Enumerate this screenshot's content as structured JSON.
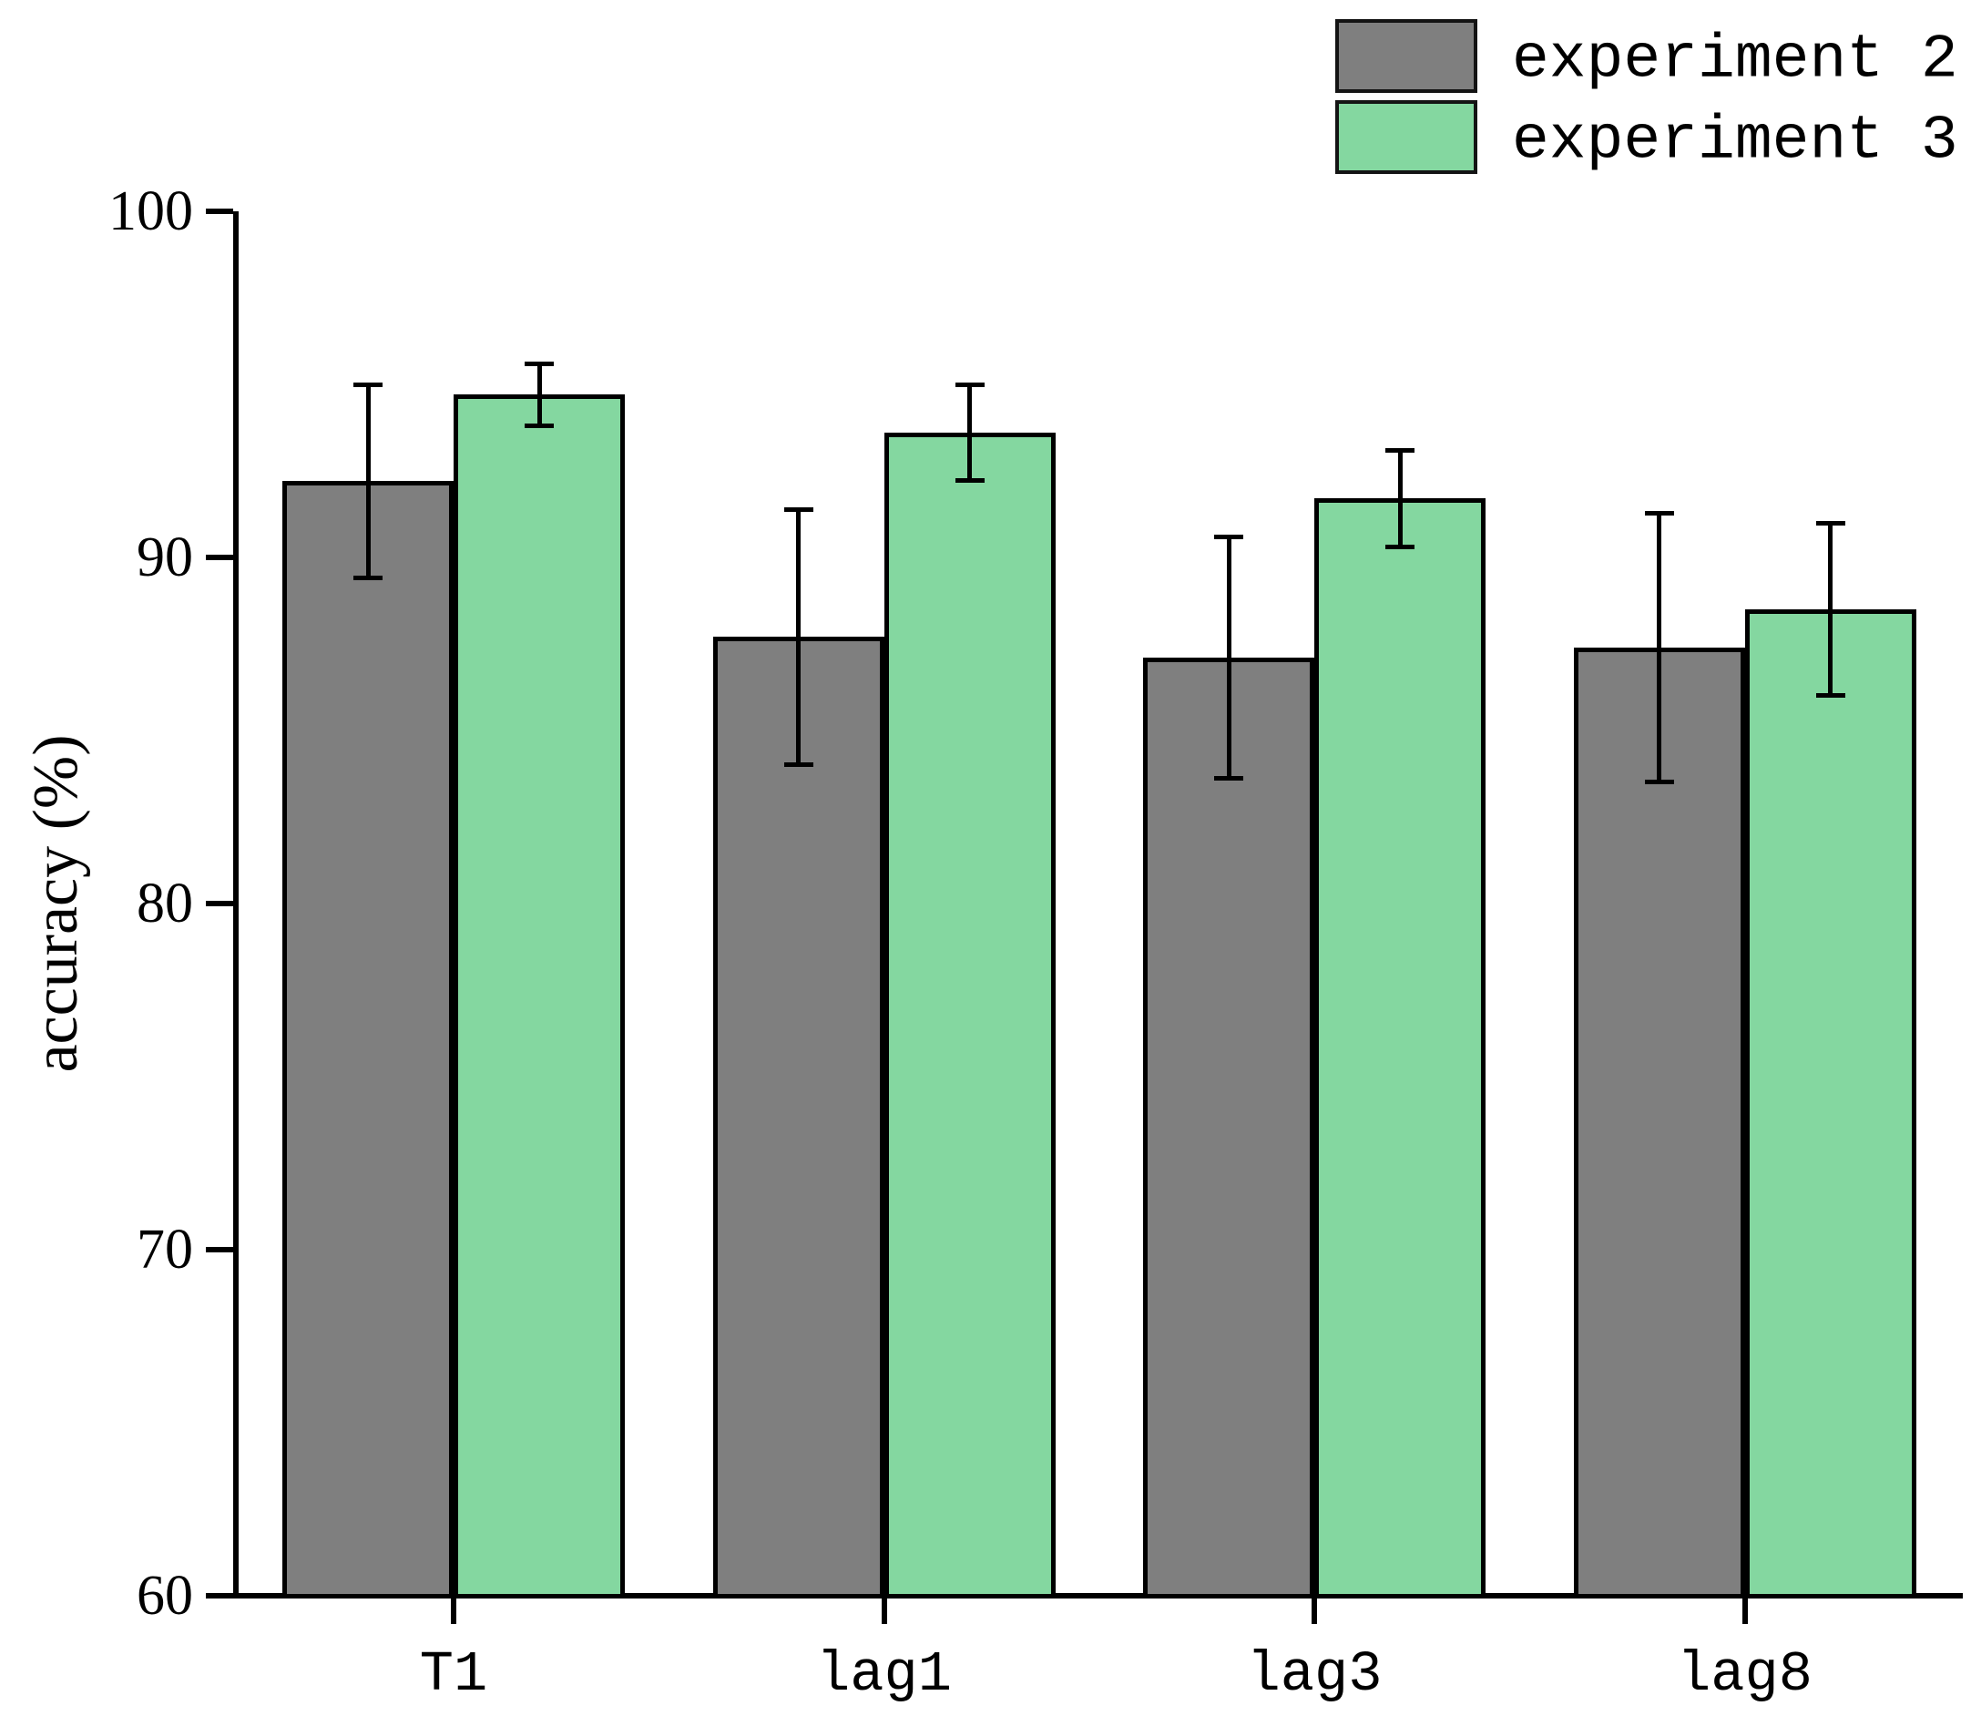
{
  "legend": {
    "items": [
      {
        "label": "experiment 2",
        "color": "#7f7f7f"
      },
      {
        "label": "experiment 3",
        "color": "#84d7a0"
      }
    ]
  },
  "chart_data": {
    "type": "bar",
    "categories": [
      "T1",
      "lag1",
      "lag3",
      "lag8"
    ],
    "series": [
      {
        "name": "experiment 2",
        "color": "#7f7f7f",
        "values": [
          92.2,
          87.7,
          87.1,
          87.4
        ],
        "errors": [
          2.8,
          3.7,
          3.5,
          3.9
        ]
      },
      {
        "name": "experiment 3",
        "color": "#84d7a0",
        "values": [
          94.7,
          93.6,
          91.7,
          88.5
        ],
        "errors": [
          0.9,
          1.4,
          1.4,
          2.5
        ]
      }
    ],
    "title": "",
    "xlabel": "",
    "ylabel": "accuracy (%)",
    "ylim": [
      60,
      100
    ],
    "yticks": [
      60,
      70,
      80,
      90,
      100
    ],
    "grid": false,
    "legend_position": "top-right",
    "bar_edge_color": "#000000",
    "error_bar_color": "#000000"
  }
}
